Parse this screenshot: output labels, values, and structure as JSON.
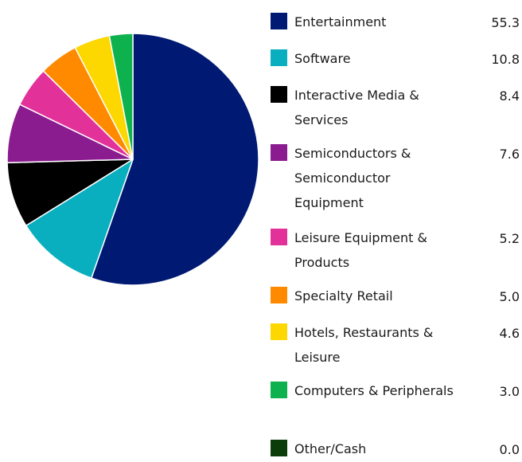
{
  "chart_data": {
    "type": "pie",
    "slices": [
      {
        "label": "Entertainment",
        "value_text": "55.3",
        "value": 55.3,
        "color": "#001a73"
      },
      {
        "label": "Software",
        "value_text": "10.8",
        "value": 10.8,
        "color": "#0aafbf"
      },
      {
        "label": "Interactive Media & Services",
        "value_text": "8.4",
        "value": 8.4,
        "color": "#000000"
      },
      {
        "label": "Semiconductors & Semiconductor Equipment",
        "value_text": "7.6",
        "value": 7.6,
        "color": "#8a1c8f"
      },
      {
        "label": "Leisure Equipment & Products",
        "value_text": "5.2",
        "value": 5.2,
        "color": "#e2329a"
      },
      {
        "label": "Specialty Retail",
        "value_text": "5.0",
        "value": 5.0,
        "color": "#ff8a00"
      },
      {
        "label": "Hotels, Restaurants & Leisure",
        "value_text": "4.6",
        "value": 4.6,
        "color": "#fcd700"
      },
      {
        "label": "Computers & Peripherals",
        "value_text": "3.0",
        "value": 3.0,
        "color": "#0db24f"
      },
      {
        "label": "Other/Cash",
        "value_text": "0.0",
        "value": 0.0,
        "color": "#0b3d0b"
      }
    ],
    "start_angle_deg": 0,
    "direction": "clockwise",
    "legend_position": "right"
  }
}
